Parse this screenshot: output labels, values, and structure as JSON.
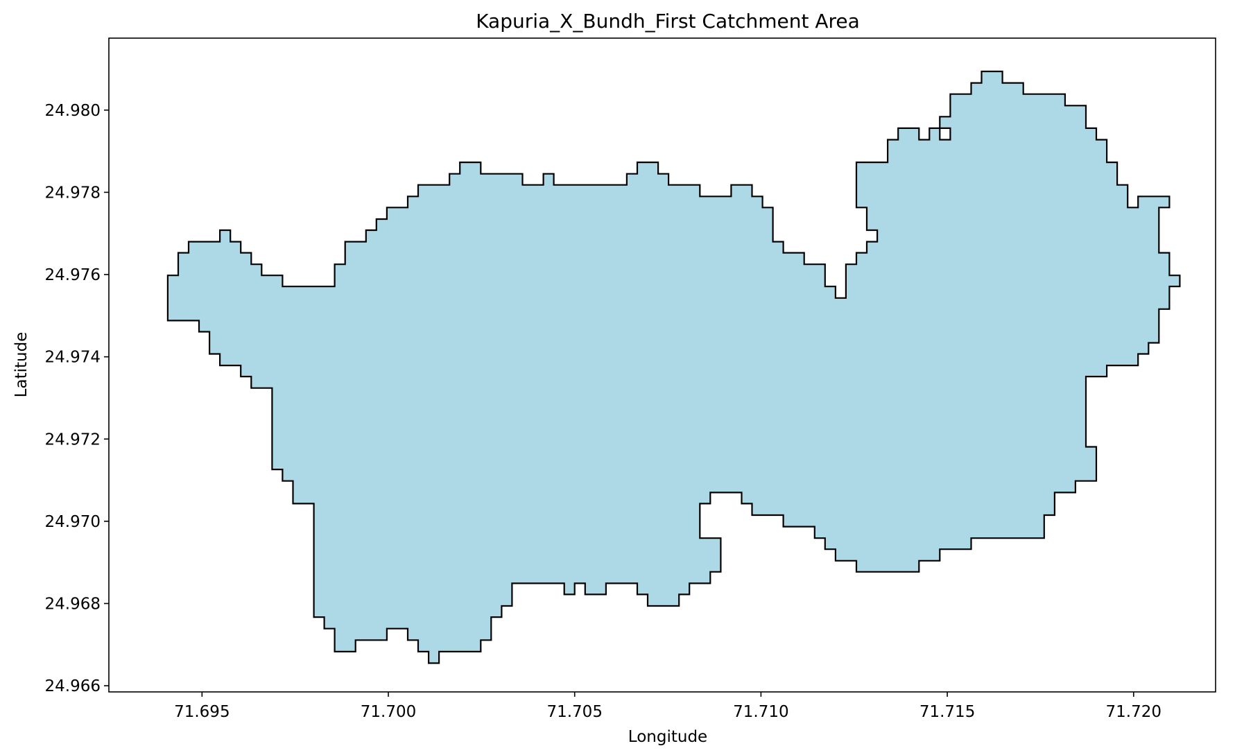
{
  "chart_data": {
    "type": "map",
    "title": "Kapuria_X_Bundh_First Catchment Area",
    "xlabel": "Longitude",
    "ylabel": "Latitude",
    "xlim": [
      71.6925,
      71.7222
    ],
    "ylim": [
      24.96585,
      24.98175
    ],
    "xticks": [
      {
        "value": 71.695,
        "label": "71.695"
      },
      {
        "value": 71.7,
        "label": "71.700"
      },
      {
        "value": 71.705,
        "label": "71.705"
      },
      {
        "value": 71.71,
        "label": "71.710"
      },
      {
        "value": 71.715,
        "label": "71.715"
      },
      {
        "value": 71.72,
        "label": "71.720"
      }
    ],
    "yticks": [
      {
        "value": 24.966,
        "label": "24.966"
      },
      {
        "value": 24.968,
        "label": "24.968"
      },
      {
        "value": 24.97,
        "label": "24.970"
      },
      {
        "value": 24.972,
        "label": "24.972"
      },
      {
        "value": 24.974,
        "label": "24.974"
      },
      {
        "value": 24.976,
        "label": "24.976"
      },
      {
        "value": 24.978,
        "label": "24.978"
      },
      {
        "value": 24.98,
        "label": "24.980"
      }
    ],
    "fill_color": "#add8e6",
    "edge_color": "#000000",
    "boundary": [
      [
        71.69408,
        24.97488
      ],
      [
        71.69492,
        24.97488
      ],
      [
        71.69492,
        24.97461
      ],
      [
        71.6952,
        24.97461
      ],
      [
        71.6952,
        24.97407
      ],
      [
        71.69548,
        24.97407
      ],
      [
        71.69548,
        24.97379
      ],
      [
        71.69604,
        24.97379
      ],
      [
        71.69604,
        24.97352
      ],
      [
        71.69632,
        24.97352
      ],
      [
        71.69632,
        24.97324
      ],
      [
        71.69688,
        24.97324
      ],
      [
        71.69688,
        24.97126
      ],
      [
        71.69716,
        24.97126
      ],
      [
        71.69716,
        24.97098
      ],
      [
        71.69744,
        24.97098
      ],
      [
        71.69744,
        24.97043
      ],
      [
        71.698,
        24.97043
      ],
      [
        71.698,
        24.96767
      ],
      [
        71.69828,
        24.96767
      ],
      [
        71.69828,
        24.96739
      ],
      [
        71.69856,
        24.96739
      ],
      [
        71.69856,
        24.96683
      ],
      [
        71.69912,
        24.96683
      ],
      [
        71.69912,
        24.96711
      ],
      [
        71.69996,
        24.96711
      ],
      [
        71.69996,
        24.96739
      ],
      [
        71.70052,
        24.96739
      ],
      [
        71.70052,
        24.96711
      ],
      [
        71.7008,
        24.96711
      ],
      [
        71.7008,
        24.96683
      ],
      [
        71.70108,
        24.96683
      ],
      [
        71.70108,
        24.96655
      ],
      [
        71.70136,
        24.96655
      ],
      [
        71.70136,
        24.96683
      ],
      [
        71.70248,
        24.96683
      ],
      [
        71.70248,
        24.96711
      ],
      [
        71.70276,
        24.96711
      ],
      [
        71.70276,
        24.96767
      ],
      [
        71.70304,
        24.96767
      ],
      [
        71.70304,
        24.96794
      ],
      [
        71.70332,
        24.96794
      ],
      [
        71.70332,
        24.96849
      ],
      [
        71.70472,
        24.96849
      ],
      [
        71.70472,
        24.96822
      ],
      [
        71.705,
        24.96822
      ],
      [
        71.705,
        24.96849
      ],
      [
        71.70528,
        24.96849
      ],
      [
        71.70528,
        24.96822
      ],
      [
        71.70584,
        24.96822
      ],
      [
        71.70584,
        24.96849
      ],
      [
        71.70668,
        24.96849
      ],
      [
        71.70668,
        24.96822
      ],
      [
        71.70696,
        24.96822
      ],
      [
        71.70696,
        24.96794
      ],
      [
        71.7078,
        24.96794
      ],
      [
        71.7078,
        24.96822
      ],
      [
        71.70808,
        24.96822
      ],
      [
        71.70808,
        24.96849
      ],
      [
        71.70864,
        24.96849
      ],
      [
        71.70864,
        24.96877
      ],
      [
        71.70892,
        24.96877
      ],
      [
        71.70892,
        24.96959
      ],
      [
        71.70836,
        24.96959
      ],
      [
        71.70836,
        24.97043
      ],
      [
        71.70864,
        24.97043
      ],
      [
        71.70864,
        24.9707
      ],
      [
        71.70948,
        24.9707
      ],
      [
        71.70948,
        24.97043
      ],
      [
        71.70976,
        24.97043
      ],
      [
        71.70976,
        24.97015
      ],
      [
        71.7106,
        24.97015
      ],
      [
        71.7106,
        24.96987
      ],
      [
        71.71144,
        24.96987
      ],
      [
        71.71144,
        24.96959
      ],
      [
        71.71172,
        24.96959
      ],
      [
        71.71172,
        24.96932
      ],
      [
        71.712,
        24.96932
      ],
      [
        71.712,
        24.96904
      ],
      [
        71.71256,
        24.96904
      ],
      [
        71.71256,
        24.96877
      ],
      [
        71.71424,
        24.96877
      ],
      [
        71.71424,
        24.96904
      ],
      [
        71.7148,
        24.96904
      ],
      [
        71.7148,
        24.96932
      ],
      [
        71.71564,
        24.96932
      ],
      [
        71.71564,
        24.96959
      ],
      [
        71.7176,
        24.96959
      ],
      [
        71.7176,
        24.97015
      ],
      [
        71.71788,
        24.97015
      ],
      [
        71.71788,
        24.9707
      ],
      [
        71.71844,
        24.9707
      ],
      [
        71.71844,
        24.97098
      ],
      [
        71.719,
        24.97098
      ],
      [
        71.719,
        24.97181
      ],
      [
        71.71872,
        24.97181
      ],
      [
        71.71872,
        24.97352
      ],
      [
        71.71928,
        24.97352
      ],
      [
        71.71928,
        24.97379
      ],
      [
        71.72012,
        24.97379
      ],
      [
        71.72012,
        24.97407
      ],
      [
        71.7204,
        24.97407
      ],
      [
        71.7204,
        24.97434
      ],
      [
        71.72068,
        24.97434
      ],
      [
        71.72068,
        24.97516
      ],
      [
        71.72096,
        24.97516
      ],
      [
        71.72096,
        24.97571
      ],
      [
        71.72124,
        24.97571
      ],
      [
        71.72124,
        24.97598
      ],
      [
        71.72096,
        24.97598
      ],
      [
        71.72096,
        24.97653
      ],
      [
        71.72068,
        24.97653
      ],
      [
        71.72068,
        24.97763
      ],
      [
        71.72096,
        24.97763
      ],
      [
        71.72096,
        24.9779
      ],
      [
        71.72012,
        24.9779
      ],
      [
        71.72012,
        24.97763
      ],
      [
        71.71984,
        24.97763
      ],
      [
        71.71984,
        24.97818
      ],
      [
        71.71956,
        24.97818
      ],
      [
        71.71956,
        24.97873
      ],
      [
        71.71928,
        24.97873
      ],
      [
        71.71928,
        24.97928
      ],
      [
        71.719,
        24.97928
      ],
      [
        71.719,
        24.97956
      ],
      [
        71.71872,
        24.97956
      ],
      [
        71.71872,
        24.98011
      ],
      [
        71.71816,
        24.98011
      ],
      [
        71.71816,
        24.98039
      ],
      [
        71.71704,
        24.98039
      ],
      [
        71.71704,
        24.98066
      ],
      [
        71.71648,
        24.98066
      ],
      [
        71.71648,
        24.98094
      ],
      [
        71.71592,
        24.98094
      ],
      [
        71.71592,
        24.98066
      ],
      [
        71.71564,
        24.98066
      ],
      [
        71.71564,
        24.98039
      ],
      [
        71.71508,
        24.98039
      ],
      [
        71.71508,
        24.97984
      ],
      [
        71.7148,
        24.97984
      ],
      [
        71.7148,
        24.97956
      ],
      [
        71.71508,
        24.97956
      ],
      [
        71.71508,
        24.97928
      ],
      [
        71.7148,
        24.97928
      ],
      [
        71.7148,
        24.97956
      ],
      [
        71.71452,
        24.97956
      ],
      [
        71.71452,
        24.97928
      ],
      [
        71.71424,
        24.97928
      ],
      [
        71.71424,
        24.97956
      ],
      [
        71.71368,
        24.97956
      ],
      [
        71.71368,
        24.97928
      ],
      [
        71.7134,
        24.97928
      ],
      [
        71.7134,
        24.97873
      ],
      [
        71.71256,
        24.97873
      ],
      [
        71.71256,
        24.97763
      ],
      [
        71.71284,
        24.97763
      ],
      [
        71.71284,
        24.97708
      ],
      [
        71.71312,
        24.97708
      ],
      [
        71.71312,
        24.9768
      ],
      [
        71.71284,
        24.9768
      ],
      [
        71.71284,
        24.97653
      ],
      [
        71.71256,
        24.97653
      ],
      [
        71.71256,
        24.97625
      ],
      [
        71.71228,
        24.97625
      ],
      [
        71.71228,
        24.97543
      ],
      [
        71.712,
        24.97543
      ],
      [
        71.712,
        24.97571
      ],
      [
        71.71172,
        24.97571
      ],
      [
        71.71172,
        24.97625
      ],
      [
        71.71116,
        24.97625
      ],
      [
        71.71116,
        24.97653
      ],
      [
        71.7106,
        24.97653
      ],
      [
        71.7106,
        24.9768
      ],
      [
        71.71032,
        24.9768
      ],
      [
        71.71032,
        24.97763
      ],
      [
        71.71004,
        24.97763
      ],
      [
        71.71004,
        24.9779
      ],
      [
        71.70976,
        24.9779
      ],
      [
        71.70976,
        24.97818
      ],
      [
        71.7092,
        24.97818
      ],
      [
        71.7092,
        24.9779
      ],
      [
        71.70836,
        24.9779
      ],
      [
        71.70836,
        24.97818
      ],
      [
        71.70752,
        24.97818
      ],
      [
        71.70752,
        24.97845
      ],
      [
        71.70724,
        24.97845
      ],
      [
        71.70724,
        24.97873
      ],
      [
        71.70668,
        24.97873
      ],
      [
        71.70668,
        24.97845
      ],
      [
        71.7064,
        24.97845
      ],
      [
        71.7064,
        24.97818
      ],
      [
        71.70444,
        24.97818
      ],
      [
        71.70444,
        24.97845
      ],
      [
        71.70416,
        24.97845
      ],
      [
        71.70416,
        24.97818
      ],
      [
        71.7036,
        24.97818
      ],
      [
        71.7036,
        24.97845
      ],
      [
        71.70248,
        24.97845
      ],
      [
        71.70248,
        24.97873
      ],
      [
        71.70192,
        24.97873
      ],
      [
        71.70192,
        24.97845
      ],
      [
        71.70164,
        24.97845
      ],
      [
        71.70164,
        24.97818
      ],
      [
        71.7008,
        24.97818
      ],
      [
        71.7008,
        24.9779
      ],
      [
        71.70052,
        24.9779
      ],
      [
        71.70052,
        24.97763
      ],
      [
        71.69996,
        24.97763
      ],
      [
        71.69996,
        24.97735
      ],
      [
        71.69968,
        24.97735
      ],
      [
        71.69968,
        24.97708
      ],
      [
        71.6994,
        24.97708
      ],
      [
        71.6994,
        24.9768
      ],
      [
        71.69884,
        24.9768
      ],
      [
        71.69884,
        24.97625
      ],
      [
        71.69856,
        24.97625
      ],
      [
        71.69856,
        24.97571
      ],
      [
        71.69716,
        24.97571
      ],
      [
        71.69716,
        24.97598
      ],
      [
        71.6966,
        24.97598
      ],
      [
        71.6966,
        24.97625
      ],
      [
        71.69632,
        24.97625
      ],
      [
        71.69632,
        24.97653
      ],
      [
        71.69604,
        24.97653
      ],
      [
        71.69604,
        24.9768
      ],
      [
        71.69576,
        24.9768
      ],
      [
        71.69576,
        24.97708
      ],
      [
        71.69548,
        24.97708
      ],
      [
        71.69548,
        24.9768
      ],
      [
        71.69464,
        24.9768
      ],
      [
        71.69464,
        24.97653
      ],
      [
        71.69436,
        24.97653
      ],
      [
        71.69436,
        24.97598
      ],
      [
        71.69408,
        24.97598
      ]
    ]
  }
}
